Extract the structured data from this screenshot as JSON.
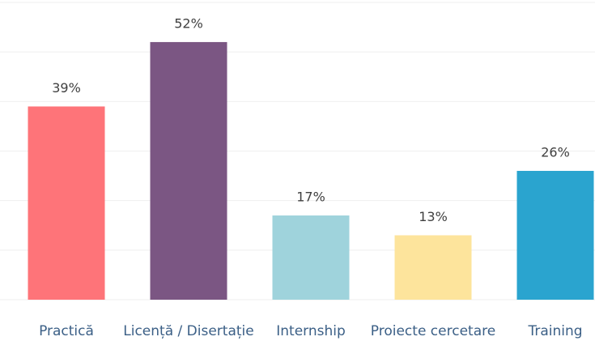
{
  "chart_data": {
    "type": "bar",
    "categories": [
      "Practică",
      "Licență / Disertație",
      "Internship",
      "Proiecte cercetare",
      "Training"
    ],
    "values": [
      39,
      52,
      17,
      13,
      26
    ],
    "value_labels": [
      "39%",
      "52%",
      "17%",
      "13%",
      "26%"
    ],
    "colors": [
      "#fe7479",
      "#7b5683",
      "#9fd3dc",
      "#fde49c",
      "#2aa4cf"
    ],
    "ylim": [
      0,
      60
    ],
    "yticks": [
      0,
      10,
      20,
      30,
      40,
      50,
      60
    ],
    "grid": true
  }
}
